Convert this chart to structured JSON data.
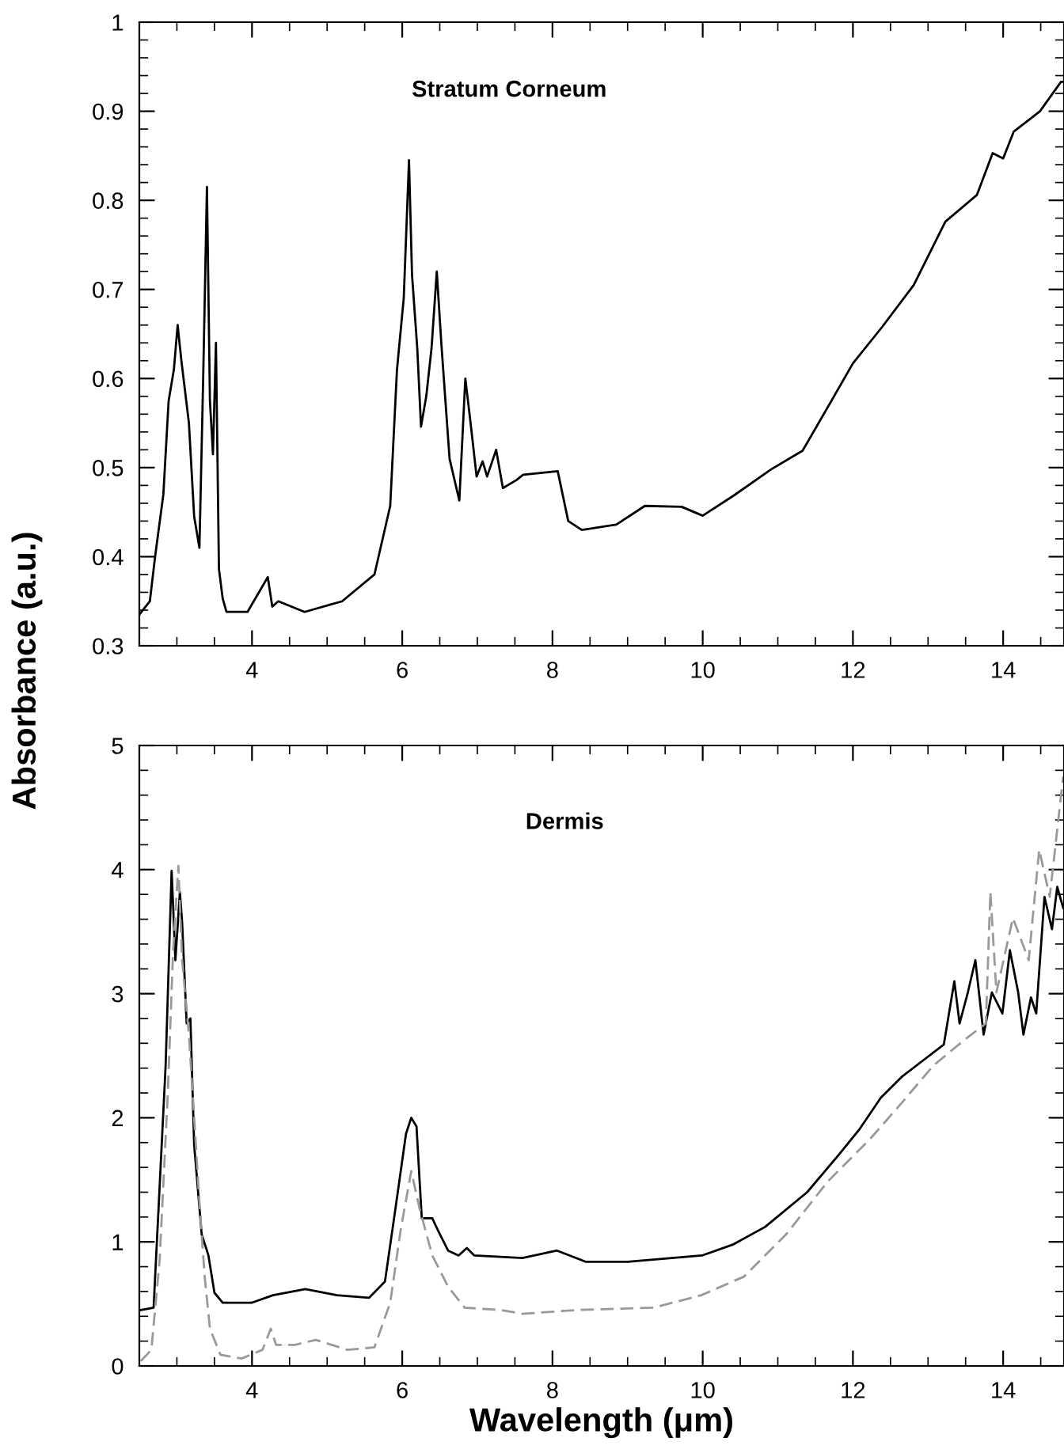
{
  "chart_data": [
    {
      "type": "line",
      "title": "Stratum Corneum",
      "ylabel": "Absorbance (a.u.)",
      "xlim": [
        2.5,
        14.81
      ],
      "xticks": [
        4,
        6,
        8,
        10,
        12,
        14
      ],
      "ylim": [
        0.3,
        1
      ],
      "yticks": [
        0.3,
        0.4,
        0.5,
        0.6,
        0.7,
        0.8,
        0.9,
        1
      ],
      "grid": false,
      "marker": "none",
      "line_style": "solid",
      "series": [
        {
          "color": "#000000",
          "x": [
            2.5,
            2.64,
            2.71,
            2.82,
            2.89,
            2.96,
            3.01,
            3.06,
            3.16,
            3.23,
            3.3,
            3.35,
            3.4,
            3.44,
            3.48,
            3.52,
            3.56,
            3.61,
            3.66,
            3.94,
            4.21,
            4.27,
            4.35,
            4.7,
            5.2,
            5.63,
            5.84,
            5.93,
            6.02,
            6.09,
            6.13,
            6.2,
            6.25,
            6.32,
            6.39,
            6.46,
            6.52,
            6.63,
            6.76,
            6.84,
            6.91,
            6.99,
            7.07,
            7.13,
            7.25,
            7.34,
            7.52,
            7.61,
            8.07,
            8.21,
            8.39,
            8.85,
            9.23,
            9.72,
            10.0,
            10.42,
            10.91,
            11.33,
            11.68,
            12.0,
            12.39,
            12.81,
            13.23,
            13.65,
            13.86,
            14.0,
            14.14,
            14.49,
            14.77,
            14.81
          ],
          "values": [
            0.335,
            0.35,
            0.4,
            0.47,
            0.575,
            0.61,
            0.66,
            0.62,
            0.55,
            0.445,
            0.41,
            0.6,
            0.815,
            0.575,
            0.515,
            0.64,
            0.386,
            0.353,
            0.338,
            0.338,
            0.377,
            0.344,
            0.35,
            0.338,
            0.35,
            0.38,
            0.457,
            0.61,
            0.69,
            0.845,
            0.717,
            0.634,
            0.546,
            0.58,
            0.634,
            0.72,
            0.64,
            0.51,
            0.463,
            0.6,
            0.55,
            0.49,
            0.507,
            0.49,
            0.52,
            0.477,
            0.486,
            0.492,
            0.496,
            0.44,
            0.43,
            0.436,
            0.457,
            0.456,
            0.446,
            0.469,
            0.498,
            0.519,
            0.57,
            0.617,
            0.658,
            0.705,
            0.776,
            0.806,
            0.853,
            0.847,
            0.877,
            0.9,
            0.933,
            0.933
          ]
        }
      ]
    },
    {
      "type": "line",
      "title": "Dermis",
      "xlabel": "Wavelength (μm)",
      "xlim": [
        2.5,
        14.81
      ],
      "xticks": [
        4,
        6,
        8,
        10,
        12,
        14
      ],
      "ylim": [
        0,
        5
      ],
      "yticks": [
        0,
        1,
        2,
        3,
        4,
        5
      ],
      "grid": false,
      "marker": "none",
      "series": [
        {
          "color": "#000000",
          "line_style": "solid",
          "x": [
            2.52,
            2.69,
            2.76,
            2.85,
            2.93,
            2.98,
            3.04,
            3.07,
            3.13,
            3.18,
            3.23,
            3.33,
            3.42,
            3.5,
            3.61,
            4.0,
            4.28,
            4.71,
            5.13,
            5.56,
            5.77,
            5.91,
            6.05,
            6.12,
            6.19,
            6.26,
            6.4,
            6.47,
            6.61,
            6.75,
            6.86,
            6.96,
            7.6,
            8.06,
            8.44,
            9.0,
            9.99,
            10.41,
            10.83,
            11.39,
            11.81,
            12.09,
            12.37,
            12.65,
            12.93,
            13.21,
            13.35,
            13.42,
            13.53,
            13.63,
            13.74,
            13.85,
            13.99,
            14.09,
            14.2,
            14.27,
            14.37,
            14.44,
            14.55,
            14.65,
            14.72,
            14.8
          ],
          "values": [
            0.45,
            0.47,
            1.32,
            2.42,
            3.99,
            3.27,
            3.82,
            3.57,
            2.76,
            2.8,
            1.78,
            1.06,
            0.89,
            0.59,
            0.51,
            0.51,
            0.57,
            0.62,
            0.57,
            0.55,
            0.68,
            1.27,
            1.87,
            2.0,
            1.93,
            1.19,
            1.19,
            1.1,
            0.93,
            0.89,
            0.95,
            0.89,
            0.87,
            0.93,
            0.84,
            0.84,
            0.89,
            0.98,
            1.12,
            1.4,
            1.7,
            1.91,
            2.16,
            2.33,
            2.46,
            2.59,
            3.1,
            2.76,
            3.01,
            3.27,
            2.67,
            3.01,
            2.84,
            3.35,
            3.01,
            2.67,
            2.97,
            2.84,
            3.78,
            3.52,
            3.86,
            3.69
          ]
        },
        {
          "color": "#999999",
          "line_style": "dashed",
          "x": [
            2.52,
            2.66,
            2.77,
            2.88,
            2.95,
            3.02,
            3.07,
            3.16,
            3.23,
            3.3,
            3.37,
            3.44,
            3.58,
            3.86,
            4.14,
            4.25,
            4.32,
            4.57,
            4.85,
            5.27,
            5.63,
            5.84,
            5.98,
            6.12,
            6.23,
            6.4,
            6.61,
            6.83,
            7.32,
            7.6,
            8.3,
            9.35,
            9.98,
            10.55,
            11.11,
            11.67,
            12.23,
            12.65,
            13.07,
            13.49,
            13.77,
            13.83,
            13.91,
            14.13,
            14.34,
            14.48,
            14.62,
            14.76,
            14.8
          ],
          "values": [
            0.04,
            0.13,
            0.85,
            2.21,
            3.35,
            4.03,
            3.27,
            2.67,
            2.0,
            1.32,
            0.72,
            0.3,
            0.09,
            0.06,
            0.13,
            0.3,
            0.17,
            0.17,
            0.21,
            0.13,
            0.15,
            0.51,
            1.1,
            1.57,
            1.27,
            0.89,
            0.64,
            0.47,
            0.45,
            0.42,
            0.45,
            0.47,
            0.57,
            0.72,
            1.06,
            1.49,
            1.83,
            2.12,
            2.42,
            2.63,
            2.76,
            3.82,
            3.01,
            3.61,
            3.27,
            4.16,
            3.78,
            4.54,
            4.75
          ]
        }
      ]
    }
  ]
}
